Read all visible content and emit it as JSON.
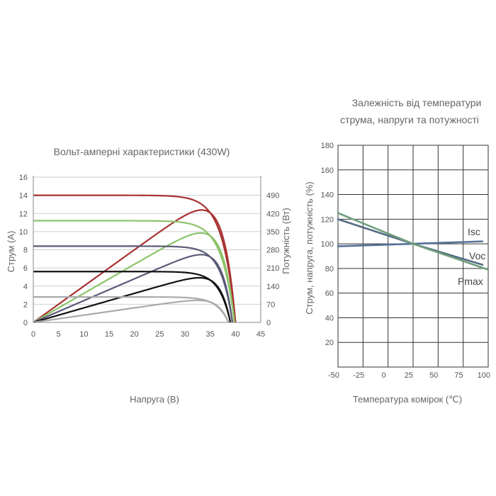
{
  "chart_data": [
    {
      "type": "line",
      "title": "Вольт-амперні характеристики (430W)",
      "xlabel": "Напруга (В)",
      "ylabel": "Струм (А)",
      "y2label": "Потужність (Вт)",
      "xlim": [
        0,
        45
      ],
      "ylim": [
        0,
        16
      ],
      "y2lim": [
        0,
        560
      ],
      "x_ticks": [
        "0",
        "5",
        "10",
        "15",
        "20",
        "25",
        "30",
        "35",
        "40",
        "45"
      ],
      "y_ticks": [
        "0",
        "2",
        "4",
        "6",
        "8",
        "10",
        "12",
        "14",
        "16"
      ],
      "y2_ticks": [
        "0",
        "70",
        "140",
        "210",
        "280",
        "350",
        "420",
        "490"
      ],
      "grid": "horizontal",
      "legend": "none",
      "series": [
        {
          "color": "#a83232",
          "isc": 14.0,
          "imp": 13.1,
          "vmp": 32.8,
          "voc": 40.0
        },
        {
          "color": "#8cc46a",
          "isc": 11.2,
          "imp": 10.45,
          "vmp": 33.0,
          "voc": 39.8
        },
        {
          "color": "#5a5a78",
          "isc": 8.4,
          "imp": 7.8,
          "vmp": 33.2,
          "voc": 39.4
        },
        {
          "color": "#111111",
          "isc": 5.6,
          "imp": 5.15,
          "vmp": 33.2,
          "voc": 39.0
        },
        {
          "color": "#aaaaaa",
          "isc": 2.8,
          "imp": 2.55,
          "vmp": 33.2,
          "voc": 38.6
        }
      ]
    },
    {
      "type": "line",
      "title": "Залежність від температури струма, напруги та потужності",
      "title_lines": [
        "Залежність від температури",
        "струма, напруги та потужності"
      ],
      "xlabel": "Температура комірок (℃)",
      "ylabel": "Струм, напруга, потужність (%)",
      "xlim": [
        -40,
        90
      ],
      "ylim": [
        0,
        180
      ],
      "x_ticks": [
        -50,
        -25,
        0,
        25,
        50,
        75,
        100
      ],
      "x_tick_labels": [
        "-50",
        "-25",
        "0",
        "25",
        "50",
        "75",
        "100"
      ],
      "y_ticks": [
        20,
        40,
        60,
        80,
        100,
        120,
        140,
        160,
        180
      ],
      "grid": "both",
      "legend": "inline-labels",
      "series": [
        {
          "name": "Isc",
          "color": "#55719a",
          "x": [
            -40,
            25,
            85
          ],
          "y": [
            98,
            100,
            102
          ]
        },
        {
          "name": "Voc",
          "color": "#556b85",
          "x": [
            -40,
            25,
            85
          ],
          "y": [
            120,
            100,
            83
          ]
        },
        {
          "name": "Pmax",
          "color": "#6f9e7c",
          "x": [
            -40,
            25,
            90
          ],
          "y": [
            125,
            100,
            79
          ]
        }
      ]
    }
  ]
}
